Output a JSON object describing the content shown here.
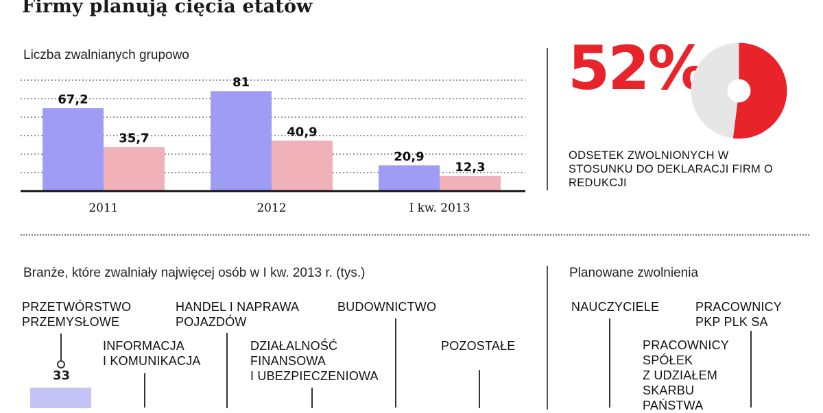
{
  "title": "Firmy planują cięcia etatów",
  "chart_data": [
    {
      "type": "bar",
      "title": "Liczba zwalnianych grupowo",
      "categories": [
        "2011",
        "2012",
        "I kw. 2013"
      ],
      "series": [
        {
          "values": [
            67.2,
            81,
            20.9
          ],
          "labels": [
            "67,2",
            "81",
            "20,9"
          ],
          "color": "#9f9cf5"
        },
        {
          "values": [
            35.7,
            40.9,
            12.3
          ],
          "labels": [
            "35,7",
            "40,9",
            "12,3"
          ],
          "color": "#f0b1b8"
        }
      ],
      "ylim": [
        0,
        90
      ],
      "grid": true
    },
    {
      "type": "pie",
      "values": [
        52,
        48
      ],
      "colors": [
        "#e8232a",
        "#e6e6e6"
      ],
      "value_label": "52%",
      "caption": "ODSETEK ZWOLNIONYCH W STOSUNKU DO DEKLARACJI FIRM O REDUKCJI"
    },
    {
      "type": "bar",
      "title": "Branże, które zwalniały najwięcej osób w I kw. 2013 r. (tys.)",
      "categories": [
        "PRZETWÓRSTWO PRZEMYSŁOWE",
        "INFORMACJA I KOMUNIKACJA",
        "HANDEL I NAPRAWA POJAZDÓW",
        "DZIAŁALNOŚĆ FINANSOWA I UBEZPIECZENIOWA",
        "BUDOWNICTWO",
        "POZOSTAŁE"
      ],
      "visible_values": [
        {
          "category": "PRZETWÓRSTWO PRZEMYSŁOWE",
          "value": 33,
          "label": "33"
        }
      ],
      "color": "#c6c4f7"
    }
  ],
  "planned": {
    "title": "Planowane zwolnienia",
    "items": [
      "NAUCZYCIELE",
      "PRACOWNICY PKP PLK SA",
      "PRACOWNICY SPÓŁEK Z UDZIAŁEM SKARBU PAŃSTWA"
    ]
  }
}
